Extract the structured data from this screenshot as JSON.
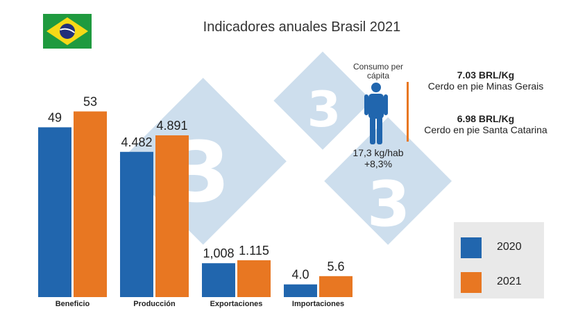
{
  "title": "Indicadores anuales Brasil 2021",
  "flag": {
    "country": "brazil-flag",
    "colors": {
      "green": "#1f9a3f",
      "yellow": "#f7d917",
      "blue": "#22307a"
    }
  },
  "colors": {
    "2020": "#2166ae",
    "2021": "#e87722",
    "watermark": "#c5d9ea"
  },
  "chart_data": {
    "type": "bar",
    "title": "Indicadores anuales Brasil 2021",
    "categories": [
      "Beneficio",
      "Producción",
      "Exportaciones",
      "Importaciones"
    ],
    "series": [
      {
        "name": "2020",
        "values_display": [
          "49",
          "4.482",
          "1,008",
          "4.0"
        ]
      },
      {
        "name": "2021",
        "values_display": [
          "53",
          "4.891",
          "1.115",
          "5.6"
        ]
      }
    ],
    "bar_fill_fraction": [
      [
        0.802,
        0.877
      ],
      [
        0.686,
        0.764
      ],
      [
        0.16,
        0.174
      ],
      [
        0.06,
        0.099
      ]
    ],
    "legend": {
      "position": "bottom-right",
      "entries": [
        "2020",
        "2021"
      ]
    }
  },
  "consumo": {
    "label": "Consumo per cápita",
    "value": "17,3 kg/hab",
    "change": "+8,3%",
    "icon": "person-icon"
  },
  "prices": [
    {
      "value": "7.03  BRL/Kg",
      "label": "Cerdo en pie Minas Gerais"
    },
    {
      "value": "6.98 BRL/Kg",
      "label": "Cerdo en pie Santa Catarina"
    }
  ]
}
